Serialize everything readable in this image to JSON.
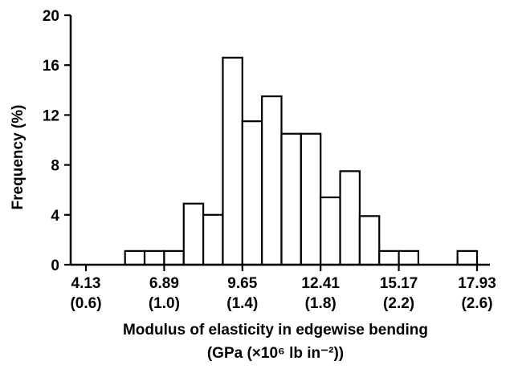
{
  "chart_data": {
    "type": "bar",
    "title": "",
    "xlabel": "Modulus of elasticity in edgewise bending",
    "xlabel_units": "(GPa (×10⁶ lb in⁻²))",
    "ylabel": "Frequency (%)",
    "ylim": [
      0,
      20
    ],
    "yticks": [
      "0",
      "4",
      "8",
      "12",
      "16",
      "20"
    ],
    "xlim": [
      4.13,
      17.93
    ],
    "xticks": [
      {
        "value": 4.13,
        "gpa": "4.13",
        "imperial": "(0.6)"
      },
      {
        "value": 6.89,
        "gpa": "6.89",
        "imperial": "(1.0)"
      },
      {
        "value": 9.65,
        "gpa": "9.65",
        "imperial": "(1.4)"
      },
      {
        "value": 12.41,
        "gpa": "12.41",
        "imperial": "(1.8)"
      },
      {
        "value": 15.17,
        "gpa": "15.17",
        "imperial": "(2.2)"
      },
      {
        "value": 17.93,
        "gpa": "17.93",
        "imperial": "(2.6)"
      }
    ],
    "bin_width": 0.69,
    "bins": [
      {
        "start": 5.51,
        "value": 1.1
      },
      {
        "start": 6.2,
        "value": 1.1
      },
      {
        "start": 6.89,
        "value": 1.1
      },
      {
        "start": 7.58,
        "value": 4.9
      },
      {
        "start": 8.27,
        "value": 4.0
      },
      {
        "start": 8.96,
        "value": 16.6
      },
      {
        "start": 9.65,
        "value": 11.5
      },
      {
        "start": 10.34,
        "value": 13.5
      },
      {
        "start": 11.03,
        "value": 10.5
      },
      {
        "start": 11.72,
        "value": 10.5
      },
      {
        "start": 12.41,
        "value": 5.4
      },
      {
        "start": 13.1,
        "value": 7.5
      },
      {
        "start": 13.79,
        "value": 3.9
      },
      {
        "start": 14.48,
        "value": 1.1
      },
      {
        "start": 15.17,
        "value": 1.1
      },
      {
        "start": 17.24,
        "value": 1.1
      }
    ],
    "grid": false,
    "legend": "none"
  }
}
